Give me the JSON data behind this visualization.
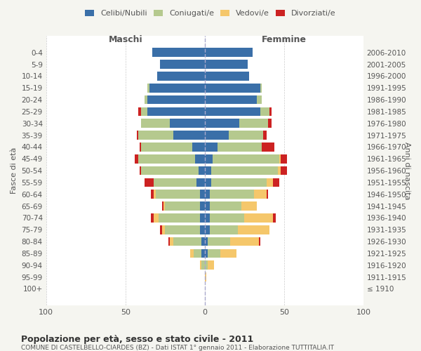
{
  "age_groups": [
    "100+",
    "95-99",
    "90-94",
    "85-89",
    "80-84",
    "75-79",
    "70-74",
    "65-69",
    "60-64",
    "55-59",
    "50-54",
    "45-49",
    "40-44",
    "35-39",
    "30-34",
    "25-29",
    "20-24",
    "15-19",
    "10-14",
    "5-9",
    "0-4"
  ],
  "birth_years": [
    "≤ 1910",
    "1911-1915",
    "1916-1920",
    "1921-1925",
    "1926-1930",
    "1931-1935",
    "1936-1940",
    "1941-1945",
    "1946-1950",
    "1951-1955",
    "1956-1960",
    "1961-1965",
    "1966-1970",
    "1971-1975",
    "1976-1980",
    "1981-1985",
    "1986-1990",
    "1991-1995",
    "1996-2000",
    "2001-2005",
    "2006-2010"
  ],
  "males": {
    "celibi": [
      0,
      0,
      0,
      2,
      2,
      3,
      3,
      3,
      3,
      5,
      4,
      6,
      8,
      20,
      22,
      36,
      36,
      35,
      30,
      28,
      33
    ],
    "coniugati": [
      0,
      0,
      2,
      5,
      18,
      22,
      26,
      22,
      28,
      27,
      36,
      36,
      32,
      22,
      18,
      4,
      2,
      1,
      0,
      0,
      0
    ],
    "vedovi": [
      0,
      0,
      1,
      2,
      2,
      2,
      3,
      1,
      1,
      0,
      0,
      0,
      0,
      0,
      0,
      0,
      0,
      0,
      0,
      0,
      0
    ],
    "divorziati": [
      0,
      0,
      0,
      0,
      1,
      1,
      2,
      1,
      2,
      6,
      1,
      2,
      1,
      1,
      0,
      2,
      0,
      0,
      0,
      0,
      0
    ]
  },
  "females": {
    "nubili": [
      0,
      0,
      0,
      2,
      2,
      3,
      3,
      3,
      3,
      4,
      4,
      5,
      8,
      15,
      22,
      35,
      33,
      35,
      28,
      27,
      30
    ],
    "coniugate": [
      0,
      0,
      2,
      8,
      14,
      18,
      22,
      20,
      28,
      35,
      42,
      42,
      28,
      22,
      18,
      6,
      3,
      1,
      0,
      0,
      0
    ],
    "vedove": [
      0,
      1,
      4,
      10,
      18,
      20,
      18,
      10,
      8,
      4,
      2,
      1,
      0,
      0,
      0,
      0,
      0,
      0,
      0,
      0,
      0
    ],
    "divorziate": [
      0,
      0,
      0,
      0,
      1,
      0,
      2,
      0,
      1,
      4,
      4,
      4,
      8,
      2,
      2,
      1,
      0,
      0,
      0,
      0,
      0
    ]
  },
  "colors": {
    "celibi": "#3a6fa8",
    "coniugati": "#b5c98e",
    "vedovi": "#f5c76b",
    "divorziati": "#cc2222"
  },
  "title1": "Popolazione per età, sesso e stato civile - 2011",
  "title2": "COMUNE DI CASTELBELLO-CIARDES (BZ) - Dati ISTAT 1° gennaio 2011 - Elaborazione TUTTITALIA.IT",
  "xlabel_left": "Maschi",
  "xlabel_right": "Femmine",
  "ylabel_left": "Fasce di età",
  "ylabel_right": "Anni di nascita",
  "xlim": 100,
  "bg_color": "#f5f5f0",
  "plot_bg": "#ffffff",
  "legend_labels": [
    "Celibi/Nubili",
    "Coniugati/e",
    "Vedovi/e",
    "Divorziati/e"
  ]
}
